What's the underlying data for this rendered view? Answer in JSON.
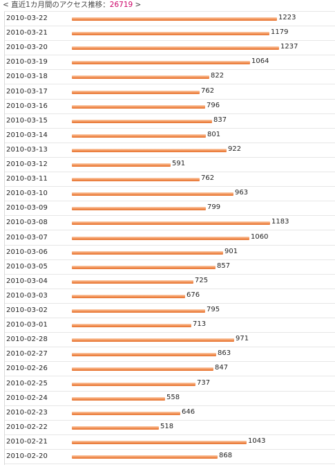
{
  "header": {
    "prefix": "< 直近1カ月間のアクセス推移：",
    "total": "26719",
    "suffix": " >"
  },
  "colors": {
    "bar_top": "#fcd2b4",
    "bar_mid": "#f39a62",
    "bar_bottom": "#e6702c",
    "total_text": "#cc0066"
  },
  "chart_data": {
    "type": "bar",
    "orientation": "horizontal",
    "title": "直近1カ月間のアクセス推移",
    "total": 26719,
    "xlabel": "",
    "ylabel": "",
    "grid": false,
    "categories": [
      "2010-03-22",
      "2010-03-21",
      "2010-03-20",
      "2010-03-19",
      "2010-03-18",
      "2010-03-17",
      "2010-03-16",
      "2010-03-15",
      "2010-03-14",
      "2010-03-13",
      "2010-03-12",
      "2010-03-11",
      "2010-03-10",
      "2010-03-09",
      "2010-03-08",
      "2010-03-07",
      "2010-03-06",
      "2010-03-05",
      "2010-03-04",
      "2010-03-03",
      "2010-03-02",
      "2010-03-01",
      "2010-02-28",
      "2010-02-27",
      "2010-02-26",
      "2010-02-25",
      "2010-02-24",
      "2010-02-23",
      "2010-02-22",
      "2010-02-21",
      "2010-02-20"
    ],
    "values": [
      1223,
      1179,
      1237,
      1064,
      822,
      762,
      796,
      837,
      801,
      922,
      591,
      762,
      963,
      799,
      1183,
      1060,
      901,
      857,
      725,
      676,
      795,
      713,
      971,
      863,
      847,
      737,
      558,
      646,
      518,
      1043,
      868
    ]
  }
}
